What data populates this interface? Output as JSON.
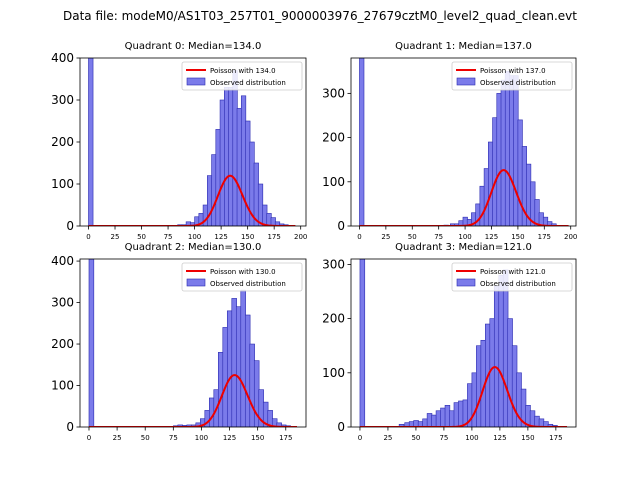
{
  "figure": {
    "suptitle": "Data file: modeM0/AS1T03_257T01_9000003976_27679cztM0_level2_quad_clean.evt",
    "colors": {
      "bar_fill": "#7b7bea",
      "bar_edge": "#2a2ab0",
      "poisson_line": "#ee0000",
      "axis": "#000000"
    }
  },
  "chart_data": [
    {
      "type": "bar",
      "title": "Quadrant 0: Median=134.0",
      "xlabel": "",
      "ylabel": "",
      "xlim": [
        -8,
        205
      ],
      "ylim": [
        0,
        400
      ],
      "xticks": [
        0,
        25,
        50,
        75,
        100,
        125,
        150,
        175,
        200
      ],
      "yticks": [
        0,
        100,
        200,
        300,
        400
      ],
      "bin_width": 4.3,
      "legend_position": "top-right",
      "series": [
        {
          "name": "Observed distribution",
          "kind": "histogram",
          "bins": [
            [
              0,
              400
            ],
            [
              66,
              1
            ],
            [
              75,
              1
            ],
            [
              84,
              3
            ],
            [
              88,
              3
            ],
            [
              92,
              10
            ],
            [
              96,
              8
            ],
            [
              100,
              22
            ],
            [
              104,
              30
            ],
            [
              108,
              50
            ],
            [
              112,
              120
            ],
            [
              116,
              170
            ],
            [
              120,
              230
            ],
            [
              124,
              300
            ],
            [
              128,
              330
            ],
            [
              132,
              330
            ],
            [
              136,
              370
            ],
            [
              140,
              280
            ],
            [
              144,
              310
            ],
            [
              148,
              250
            ],
            [
              152,
              200
            ],
            [
              156,
              150
            ],
            [
              160,
              100
            ],
            [
              164,
              50
            ],
            [
              168,
              30
            ],
            [
              172,
              20
            ],
            [
              176,
              10
            ],
            [
              180,
              5
            ],
            [
              184,
              3
            ]
          ]
        },
        {
          "name": "Poisson with 134.0",
          "kind": "poisson",
          "mean": 134.0,
          "scale": 3470,
          "x_range": [
            0,
            195
          ]
        }
      ]
    },
    {
      "type": "bar",
      "title": "Quadrant 1: Median=137.0",
      "xlabel": "",
      "ylabel": "",
      "xlim": [
        -8,
        205
      ],
      "ylim": [
        0,
        380
      ],
      "xticks": [
        0,
        25,
        50,
        75,
        100,
        125,
        150,
        175,
        200
      ],
      "yticks": [
        0,
        100,
        200,
        300
      ],
      "bin_width": 4.3,
      "legend_position": "top-right",
      "series": [
        {
          "name": "Observed distribution",
          "kind": "histogram",
          "bins": [
            [
              0,
              380
            ],
            [
              72,
              1
            ],
            [
              80,
              2
            ],
            [
              86,
              5
            ],
            [
              90,
              5
            ],
            [
              94,
              12
            ],
            [
              98,
              20
            ],
            [
              102,
              15
            ],
            [
              106,
              30
            ],
            [
              110,
              50
            ],
            [
              114,
              90
            ],
            [
              118,
              130
            ],
            [
              122,
              190
            ],
            [
              126,
              245
            ],
            [
              130,
              300
            ],
            [
              134,
              330
            ],
            [
              138,
              350
            ],
            [
              142,
              340
            ],
            [
              146,
              340
            ],
            [
              150,
              240
            ],
            [
              154,
              180
            ],
            [
              158,
              140
            ],
            [
              162,
              100
            ],
            [
              166,
              60
            ],
            [
              170,
              30
            ],
            [
              174,
              20
            ],
            [
              178,
              10
            ],
            [
              182,
              5
            ]
          ]
        },
        {
          "name": "Poisson with 137.0",
          "kind": "poisson",
          "mean": 137.0,
          "scale": 3710,
          "x_range": [
            0,
            198
          ]
        }
      ]
    },
    {
      "type": "bar",
      "title": "Quadrant 2: Median=130.0",
      "xlabel": "",
      "ylabel": "",
      "xlim": [
        -8,
        193
      ],
      "ylim": [
        0,
        405
      ],
      "xticks": [
        0,
        25,
        50,
        75,
        100,
        125,
        150,
        175
      ],
      "yticks": [
        0,
        100,
        200,
        300,
        400
      ],
      "bin_width": 4.3,
      "legend_position": "top-right",
      "series": [
        {
          "name": "Observed distribution",
          "kind": "histogram",
          "bins": [
            [
              0,
              405
            ],
            [
              65,
              1
            ],
            [
              75,
              3
            ],
            [
              79,
              5
            ],
            [
              83,
              4
            ],
            [
              87,
              5
            ],
            [
              91,
              5
            ],
            [
              95,
              10
            ],
            [
              99,
              20
            ],
            [
              103,
              40
            ],
            [
              107,
              70
            ],
            [
              111,
              90
            ],
            [
              115,
              180
            ],
            [
              119,
              240
            ],
            [
              123,
              280
            ],
            [
              127,
              310
            ],
            [
              131,
              290
            ],
            [
              135,
              330
            ],
            [
              139,
              270
            ],
            [
              143,
              200
            ],
            [
              147,
              160
            ],
            [
              151,
              90
            ],
            [
              155,
              60
            ],
            [
              159,
              40
            ],
            [
              163,
              20
            ],
            [
              167,
              10
            ],
            [
              171,
              5
            ],
            [
              175,
              3
            ]
          ]
        },
        {
          "name": "Poisson with 130.0",
          "kind": "poisson",
          "mean": 130.0,
          "scale": 3580,
          "x_range": [
            0,
            185
          ]
        }
      ]
    },
    {
      "type": "bar",
      "title": "Quadrant 3: Median=121.0",
      "xlabel": "",
      "ylabel": "",
      "xlim": [
        -8,
        193
      ],
      "ylim": [
        0,
        310
      ],
      "xticks": [
        0,
        25,
        50,
        75,
        100,
        125,
        150,
        175
      ],
      "yticks": [
        0,
        100,
        200,
        300
      ],
      "bin_width": 4.3,
      "legend_position": "top-right",
      "series": [
        {
          "name": "Observed distribution",
          "kind": "histogram",
          "bins": [
            [
              0,
              310
            ],
            [
              35,
              5
            ],
            [
              40,
              8
            ],
            [
              44,
              10
            ],
            [
              48,
              12
            ],
            [
              52,
              10
            ],
            [
              56,
              15
            ],
            [
              60,
              25
            ],
            [
              64,
              22
            ],
            [
              68,
              30
            ],
            [
              72,
              35
            ],
            [
              76,
              40
            ],
            [
              80,
              30
            ],
            [
              84,
              45
            ],
            [
              88,
              48
            ],
            [
              92,
              50
            ],
            [
              96,
              80
            ],
            [
              100,
              100
            ],
            [
              104,
              150
            ],
            [
              108,
              160
            ],
            [
              112,
              190
            ],
            [
              116,
              200
            ],
            [
              120,
              260
            ],
            [
              124,
              280
            ],
            [
              128,
              290
            ],
            [
              132,
              200
            ],
            [
              136,
              150
            ],
            [
              140,
              100
            ],
            [
              144,
              70
            ],
            [
              148,
              40
            ],
            [
              152,
              30
            ],
            [
              156,
              20
            ],
            [
              160,
              15
            ],
            [
              164,
              10
            ],
            [
              168,
              5
            ],
            [
              172,
              3
            ]
          ]
        },
        {
          "name": "Poisson with 121.0",
          "kind": "poisson",
          "mean": 121.0,
          "scale": 3050,
          "x_range": [
            0,
            185
          ]
        }
      ]
    }
  ]
}
